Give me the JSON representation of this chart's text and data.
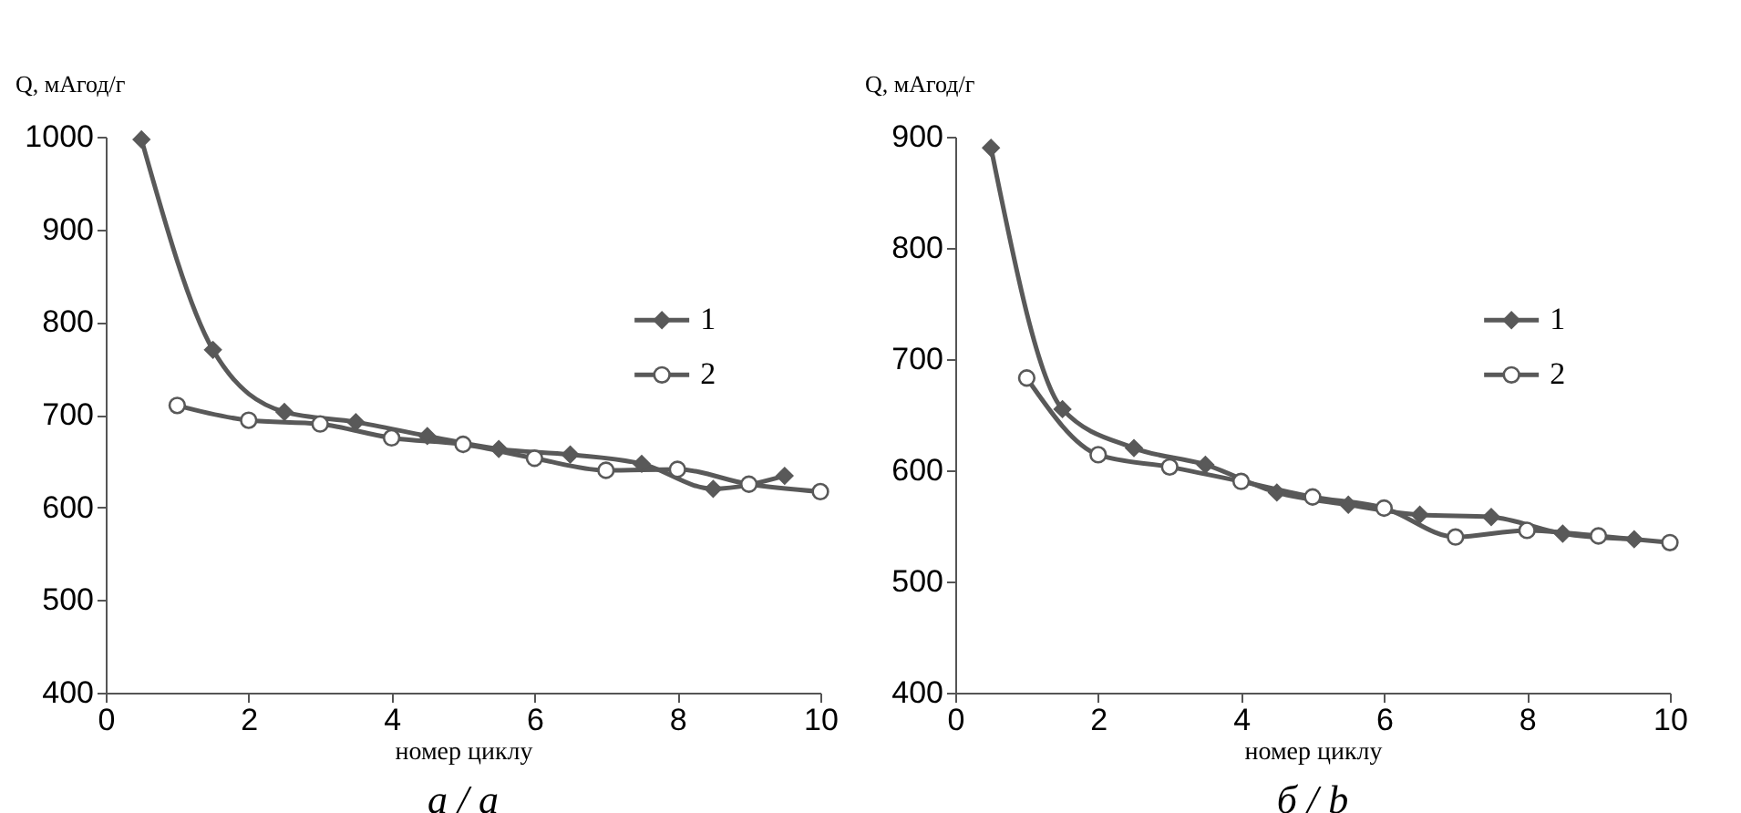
{
  "chart_data": [
    {
      "type": "line",
      "xlabel": "номер циклу",
      "ylabel": "Q, мАгод/г",
      "annotations": [
        "а / a"
      ],
      "xlim": [
        0,
        10
      ],
      "xticks": [
        0,
        2,
        4,
        6,
        8,
        10
      ],
      "ylim": [
        400,
        1000
      ],
      "yticks": [
        400,
        500,
        600,
        700,
        800,
        900,
        1000
      ],
      "grid": false,
      "legend": "right",
      "line_style": "solid",
      "series": [
        {
          "name": "1",
          "color": "#595959",
          "marker": "diamond",
          "x": [
            0.5,
            1.5,
            2.5,
            3.5,
            4.5,
            5.5,
            6.5,
            7.5,
            8.5,
            9.5
          ],
          "values": [
            997,
            770,
            703,
            692,
            677,
            663,
            657,
            647,
            620,
            634
          ]
        },
        {
          "name": "2",
          "color": "#595959",
          "marker": "circle",
          "x": [
            1,
            2,
            3,
            4,
            5,
            6,
            7,
            8,
            9,
            10
          ],
          "values": [
            710,
            694,
            690,
            675,
            668,
            653,
            640,
            641,
            625,
            617
          ]
        }
      ]
    },
    {
      "type": "line",
      "xlabel": "номер циклу",
      "ylabel": "Q, мАгод/г",
      "annotations": [
        "б / b"
      ],
      "xlim": [
        0,
        10
      ],
      "xticks": [
        0,
        2,
        4,
        6,
        8,
        10
      ],
      "ylim": [
        400,
        900
      ],
      "yticks": [
        400,
        500,
        600,
        700,
        800,
        900
      ],
      "grid": false,
      "legend": "right",
      "line_style": "solid",
      "series": [
        {
          "name": "1",
          "color": "#595959",
          "marker": "diamond",
          "x": [
            0.5,
            1.5,
            2.5,
            3.5,
            4.5,
            5.5,
            6.5,
            7.5,
            8.5,
            9.5
          ],
          "values": [
            890,
            655,
            620,
            605,
            580,
            569,
            560,
            558,
            543,
            538
          ]
        },
        {
          "name": "2",
          "color": "#595959",
          "marker": "circle",
          "x": [
            1,
            2,
            3,
            4,
            5,
            6,
            7,
            8,
            9,
            10
          ],
          "values": [
            683,
            614,
            603,
            590,
            576,
            566,
            540,
            546,
            541,
            535
          ]
        }
      ]
    }
  ]
}
